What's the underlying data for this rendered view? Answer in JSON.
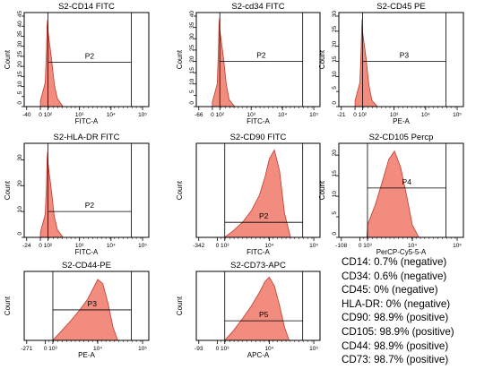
{
  "colors": {
    "fill": "#f08070",
    "fill_stroke": "#c0392b",
    "axis": "#000000",
    "gate": "#000000"
  },
  "chart_data": [
    {
      "type": "area",
      "title": "S2-CD14 FITC",
      "xlabel": "FITC-A",
      "ylabel": "Count",
      "scale": "log",
      "x_ticks": [
        "-40",
        "0",
        "10²",
        "10³",
        "10⁴",
        "10⁵"
      ],
      "y_ticks": [
        "0",
        "5",
        "10",
        "15",
        "20",
        "25",
        "30",
        "35",
        "40",
        "45"
      ],
      "ylim": [
        0,
        45
      ],
      "gate": {
        "label": "P2",
        "xrange": [
          "10²",
          "10⁵"
        ],
        "y": 22
      },
      "x": [
        0,
        20,
        40,
        60,
        80,
        100,
        130,
        160,
        200,
        300
      ],
      "values": [
        3,
        12,
        28,
        40,
        43,
        38,
        24,
        11,
        4,
        0
      ]
    },
    {
      "type": "area",
      "title": "S2-cd34 FITC",
      "xlabel": "FITC-A",
      "ylabel": "Count",
      "scale": "log",
      "x_ticks": [
        "-66",
        "0",
        "10²",
        "10³",
        "10⁴",
        "10⁵"
      ],
      "y_ticks": [
        "0",
        "5",
        "10",
        "15",
        "20",
        "25",
        "30",
        "35",
        "40"
      ],
      "ylim": [
        0,
        40
      ],
      "gate": {
        "label": "P2",
        "xrange": [
          "10²",
          "10⁵"
        ],
        "y": 20
      },
      "x": [
        0,
        20,
        40,
        60,
        80,
        100,
        130,
        160,
        200,
        300
      ],
      "values": [
        2,
        10,
        24,
        36,
        39,
        34,
        22,
        10,
        3,
        0
      ]
    },
    {
      "type": "area",
      "title": "S2-CD45 PE",
      "xlabel": "PE-A",
      "ylabel": "Count",
      "scale": "log",
      "x_ticks": [
        "-21",
        "0",
        "10²",
        "10³",
        "10⁴",
        "10⁵"
      ],
      "y_ticks": [
        "0",
        "5",
        "10",
        "15",
        "20",
        "25",
        "30"
      ],
      "ylim": [
        0,
        30
      ],
      "gate": {
        "label": "P3",
        "xrange": [
          "10²",
          "10⁵"
        ],
        "y": 15
      },
      "x": [
        0,
        20,
        40,
        60,
        80,
        100,
        130,
        160,
        200,
        300
      ],
      "values": [
        2,
        8,
        18,
        26,
        29,
        25,
        16,
        7,
        2,
        0
      ]
    },
    {
      "type": "area",
      "title": "S2-HLA-DR FITC",
      "xlabel": "FITC-A",
      "ylabel": "Count",
      "scale": "log",
      "x_ticks": [
        "-24",
        "0",
        "10²",
        "10³",
        "10⁴",
        "10⁵"
      ],
      "y_ticks": [
        "0",
        "10",
        "20",
        "30"
      ],
      "ylim": [
        0,
        35
      ],
      "gate": {
        "label": "P2",
        "xrange": [
          "10²",
          "10⁵"
        ],
        "y": 10
      },
      "x": [
        0,
        20,
        40,
        60,
        80,
        100,
        130,
        160,
        200,
        300
      ],
      "values": [
        2,
        9,
        20,
        30,
        33,
        29,
        18,
        8,
        3,
        0
      ]
    },
    {
      "type": "area",
      "title": "S2-CD90 FITC",
      "xlabel": "FITC-A",
      "ylabel": "Count",
      "scale": "log",
      "x_ticks": [
        "-342",
        "0",
        "10³",
        "10⁴",
        "10⁵"
      ],
      "y_ticks": [],
      "ylim": [
        0,
        30
      ],
      "gate": {
        "label": "P2",
        "xrange": [
          "10³",
          "10⁵"
        ],
        "y": 5
      },
      "x": [
        800,
        1500,
        2500,
        4000,
        6000,
        8000,
        10000,
        13000,
        17000,
        22000,
        30000
      ],
      "values": [
        0,
        2,
        5,
        9,
        14,
        20,
        26,
        29,
        22,
        8,
        0
      ]
    },
    {
      "type": "area",
      "title": "S2-CD105 Percp",
      "xlabel": "PerCP-Cy5-5-A",
      "ylabel": "Count",
      "scale": "log",
      "x_ticks": [
        "-108",
        "0",
        "10³",
        "10⁴",
        "10⁵"
      ],
      "y_ticks": [
        "0",
        "5",
        "10",
        "15",
        "20"
      ],
      "ylim": [
        0,
        22
      ],
      "gate": {
        "label": "P4",
        "xrange": [
          "10³",
          "10⁵"
        ],
        "y": 12
      },
      "x": [
        600,
        1000,
        1500,
        2200,
        3000,
        4000,
        5500,
        7500,
        10000,
        14000
      ],
      "values": [
        0,
        3,
        8,
        14,
        19,
        21,
        17,
        10,
        3,
        0
      ]
    },
    {
      "type": "area",
      "title": "S2-CD44-PE",
      "xlabel": "PE-A",
      "ylabel": "Count",
      "scale": "log",
      "x_ticks": [
        "-271",
        "0",
        "10³",
        "10⁴",
        "10⁵"
      ],
      "y_ticks": [],
      "ylim": [
        0,
        30
      ],
      "gate": {
        "label": "P3",
        "xrange": [
          "10³",
          "10⁵"
        ],
        "y": 14
      },
      "x": [
        800,
        1500,
        2500,
        4000,
        6000,
        8000,
        10000,
        13000,
        17000,
        22000,
        28000
      ],
      "values": [
        0,
        4,
        9,
        14,
        19,
        24,
        28,
        26,
        17,
        6,
        0
      ]
    },
    {
      "type": "area",
      "title": "S2-CD73-APC",
      "xlabel": "APC-A",
      "ylabel": "Count",
      "scale": "log",
      "x_ticks": [
        "-93",
        "0",
        "10³",
        "10⁴",
        "10⁵"
      ],
      "y_ticks": [],
      "ylim": [
        0,
        30
      ],
      "gate": {
        "label": "P5",
        "xrange": [
          "10³",
          "10⁵"
        ],
        "y": 9
      },
      "x": [
        800,
        1500,
        2500,
        4000,
        6000,
        8000,
        10000,
        13000,
        17000,
        22000,
        28000
      ],
      "values": [
        0,
        4,
        10,
        16,
        22,
        27,
        29,
        25,
        16,
        6,
        0
      ]
    }
  ],
  "summary": [
    "CD14: 0.7% (negative)",
    "CD34: 0.6% (negative)",
    "CD45: 0% (negative)",
    "HLA-DR: 0% (negative)",
    "CD90: 98.9% (positive)",
    "CD105: 98.9% (positive)",
    "CD44: 98.9% (positive)",
    "CD73: 98.7% (positive)"
  ]
}
